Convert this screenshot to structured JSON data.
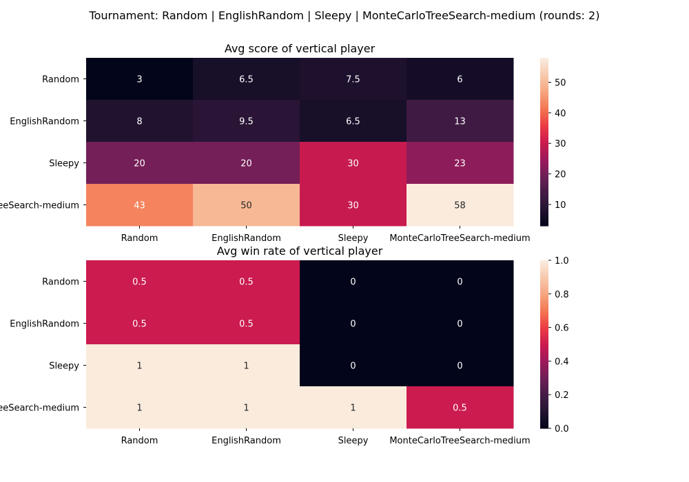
{
  "suptitle": "Tournament: Random | EnglishRandom | Sleepy | MonteCarloTreeSearch-medium (rounds: 2)",
  "chart_data": [
    {
      "type": "heatmap",
      "title": "Avg score of vertical player",
      "rows": [
        "Random",
        "EnglishRandom",
        "Sleepy",
        "MonteCarloTreeSearch-medium"
      ],
      "columns": [
        "Random",
        "EnglishRandom",
        "Sleepy",
        "MonteCarloTreeSearch-medium"
      ],
      "values": [
        [
          3,
          6.5,
          7.5,
          6
        ],
        [
          8,
          9.5,
          6.5,
          13
        ],
        [
          20,
          20,
          30,
          23
        ],
        [
          43,
          50,
          30,
          58
        ]
      ],
      "labels": [
        [
          "3",
          "6.5",
          "7.5",
          "6"
        ],
        [
          "8",
          "9.5",
          "6.5",
          "13"
        ],
        [
          "20",
          "20",
          "30",
          "23"
        ],
        [
          "43",
          "50",
          "30",
          "58"
        ]
      ],
      "colormap": "rocket",
      "vmin": 3,
      "vmax": 58,
      "colorbar_ticks": [
        10,
        20,
        30,
        40,
        50
      ]
    },
    {
      "type": "heatmap",
      "title": "Avg win rate of vertical player",
      "rows": [
        "Random",
        "EnglishRandom",
        "Sleepy",
        "MonteCarloTreeSearch-medium"
      ],
      "columns": [
        "Random",
        "EnglishRandom",
        "Sleepy",
        "MonteCarloTreeSearch-medium"
      ],
      "values": [
        [
          0.5,
          0.5,
          0,
          0
        ],
        [
          0.5,
          0.5,
          0,
          0
        ],
        [
          1,
          1,
          0,
          0
        ],
        [
          1,
          1,
          1,
          0.5
        ]
      ],
      "labels": [
        [
          "0.5",
          "0.5",
          "0",
          "0"
        ],
        [
          "0.5",
          "0.5",
          "0",
          "0"
        ],
        [
          "1",
          "1",
          "0",
          "0"
        ],
        [
          "1",
          "1",
          "1",
          "0.5"
        ]
      ],
      "colormap": "rocket",
      "vmin": 0,
      "vmax": 1,
      "colorbar_ticks": [
        "0.0",
        "0.2",
        "0.4",
        "0.6",
        "0.8",
        "1.0"
      ]
    }
  ]
}
